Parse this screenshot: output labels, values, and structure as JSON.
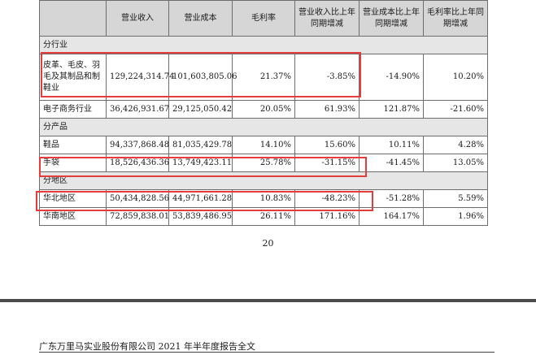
{
  "table": {
    "headers": [
      "",
      "营业收入",
      "营业成本",
      "毛利率",
      "营业收入比上年同期增减",
      "营业成本比上年同期增减",
      "毛利率比上年同期增减"
    ],
    "sections": [
      {
        "label": "分行业",
        "rows": [
          {
            "name": "皮革、毛皮、羽毛及其制品和制鞋业",
            "cells": [
              "129,224,314.74",
              "101,603,805.06",
              "21.37%",
              "-3.85%",
              "-14.90%",
              "10.20%"
            ]
          },
          {
            "name": "电子商务行业",
            "cells": [
              "36,426,931.67",
              "29,125,050.42",
              "20.05%",
              "61.93%",
              "121.87%",
              "-21.60%"
            ]
          }
        ]
      },
      {
        "label": "分产品",
        "rows": [
          {
            "name": "鞋品",
            "cells": [
              "94,337,868.48",
              "81,035,429.78",
              "14.10%",
              "15.60%",
              "10.11%",
              "4.28%"
            ]
          },
          {
            "name": "手袋",
            "cells": [
              "18,526,436.36",
              "13,749,423.11",
              "25.78%",
              "-31.15%",
              "-41.45%",
              "13.05%"
            ]
          }
        ]
      },
      {
        "label": "分地区",
        "rows": [
          {
            "name": "华北地区",
            "cells": [
              "50,434,828.56",
              "44,971,661.28",
              "10.83%",
              "-48.23%",
              "-51.28%",
              "5.59%"
            ]
          },
          {
            "name": "华南地区",
            "cells": [
              "72,859,838.01",
              "53,839,486.95",
              "26.11%",
              "171.16%",
              "164.17%",
              "1.96%"
            ]
          }
        ]
      }
    ]
  },
  "page_number": "20",
  "footer": "广东万里马实业股份有限公司 2021 年半年度报告全文",
  "colors": {
    "highlight": "#e53c3c",
    "header_bg": "#d6d6d6",
    "section_bg": "#e6e6e6"
  }
}
